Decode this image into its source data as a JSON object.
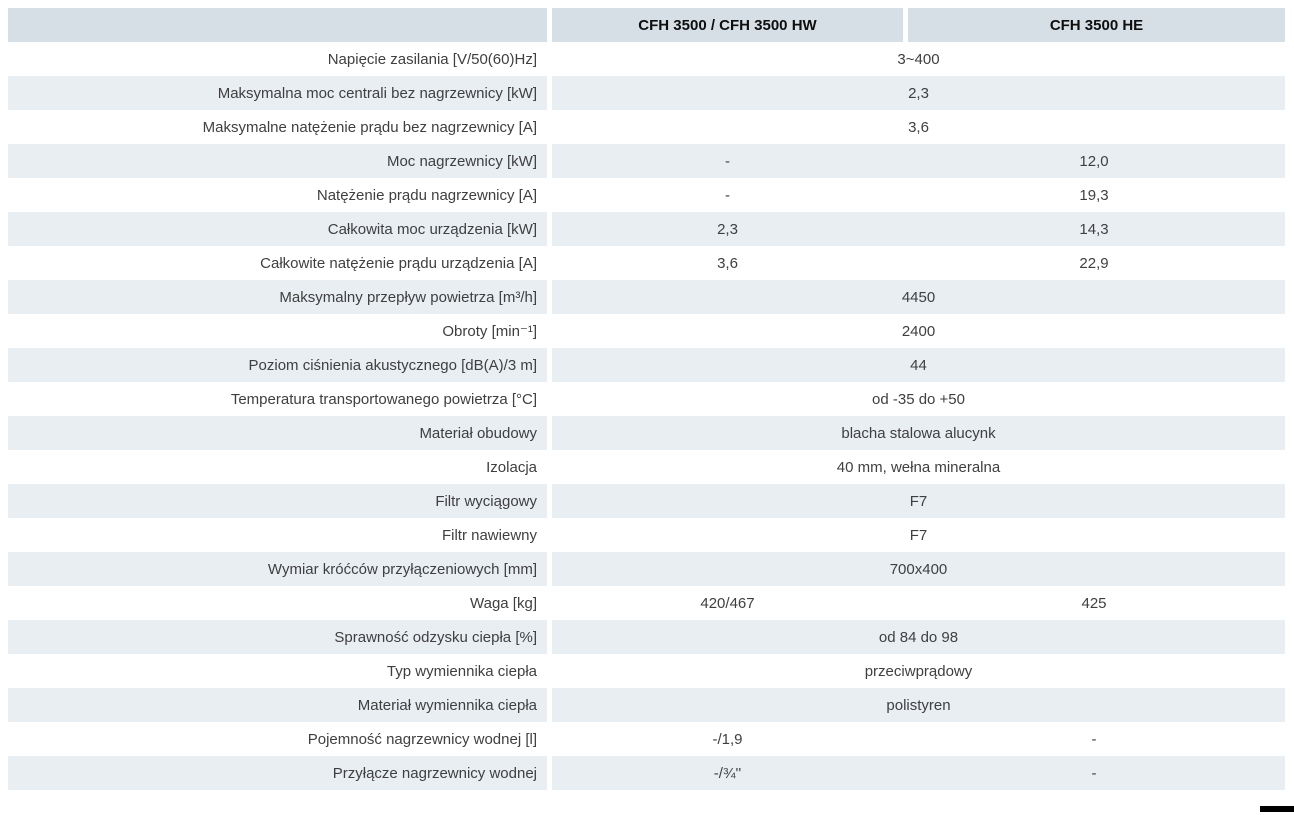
{
  "header": {
    "col1": "CFH 3500 / CFH 3500 HW",
    "col2": "CFH 3500 HE"
  },
  "table": {
    "rows": [
      {
        "label": "Napięcie zasilania [V/50(60)Hz]",
        "span": "3~400"
      },
      {
        "label": "Maksymalna moc centrali bez nagrzewnicy [kW]",
        "span": "2,3"
      },
      {
        "label": "Maksymalne natężenie prądu bez nagrzewnicy [A]",
        "span": "3,6"
      },
      {
        "label": "Moc nagrzewnicy [kW]",
        "col1": "-",
        "col2": "12,0"
      },
      {
        "label": "Natężenie prądu nagrzewnicy [A]",
        "col1": "-",
        "col2": "19,3"
      },
      {
        "label": "Całkowita moc urządzenia [kW]",
        "col1": "2,3",
        "col2": "14,3"
      },
      {
        "label": "Całkowite natężenie prądu urządzenia [A]",
        "col1": "3,6",
        "col2": "22,9"
      },
      {
        "label": "Maksymalny przepływ powietrza [m³/h]",
        "span": "4450"
      },
      {
        "label": "Obroty [min⁻¹]",
        "span": "2400"
      },
      {
        "label": "Poziom ciśnienia akustycznego [dB(A)/3 m]",
        "span": "44"
      },
      {
        "label": "Temperatura transportowanego powietrza [°C]",
        "span": "od -35 do +50"
      },
      {
        "label": "Materiał obudowy",
        "span": "blacha stalowa alucynk"
      },
      {
        "label": "Izolacja",
        "span": "40 mm, wełna mineralna"
      },
      {
        "label": "Filtr wyciągowy",
        "span": "F7"
      },
      {
        "label": "Filtr nawiewny",
        "span": "F7"
      },
      {
        "label": "Wymiar króćców przyłączeniowych [mm]",
        "span": "700x400"
      },
      {
        "label": "Waga [kg]",
        "col1": "420/467",
        "col2": "425"
      },
      {
        "label": "Sprawność odzysku ciepła [%]",
        "span": "od 84 do 98"
      },
      {
        "label": "Typ wymiennika ciepła",
        "span": "przeciwprądowy"
      },
      {
        "label": "Materiał wymiennika ciepła",
        "span": "polistyren"
      },
      {
        "label": "Pojemność nagrzewnicy wodnej [l]",
        "col1": "-/1,9",
        "col2": "-"
      },
      {
        "label": "Przyłącze nagrzewnicy wodnej",
        "col1": "-/¾''",
        "col2": "-"
      }
    ]
  },
  "colors": {
    "header_band": "#d6dfe6",
    "row_band": "#e9eef3",
    "text": "#3f3f3f",
    "header_text": "#0e0e0e"
  }
}
